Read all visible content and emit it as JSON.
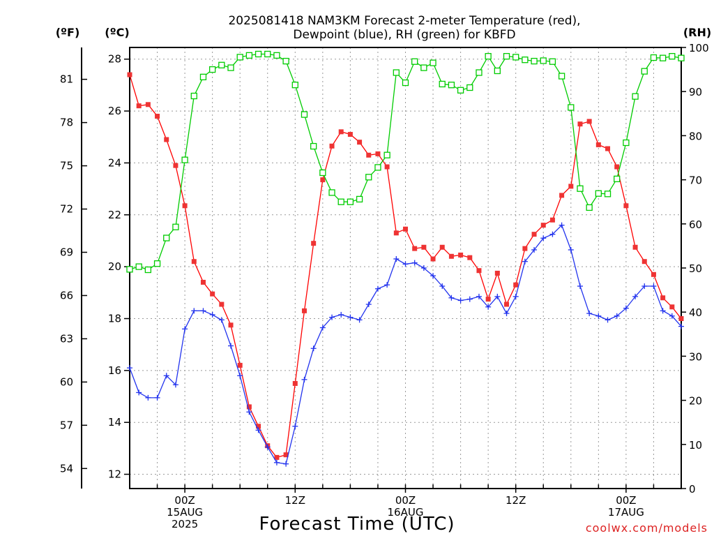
{
  "title_line1": "2025081418 NAM3KM Forecast 2-meter Temperature (red),",
  "title_line2": "Dewpoint (blue), RH (green) for KBFD",
  "units": {
    "fahrenheit": "(ºF)",
    "celsius": "(ºC)",
    "rh": "(RH)"
  },
  "xlabel": "Forecast Time (UTC)",
  "credit": "coolwx.com/models",
  "colors": {
    "temperature": "#ff0000",
    "temperature_marker": "#ee3333",
    "dewpoint": "#2233ee",
    "rh": "#00cc00",
    "grid": "#999999",
    "credit": "#dd2222"
  },
  "chart_data": {
    "type": "line",
    "x_unit": "forecast hour from 2025-08-14 18Z",
    "x_range": [
      0,
      60
    ],
    "x_ticks": [
      {
        "hour": 6,
        "lines": [
          "00Z",
          "15AUG",
          "2025"
        ]
      },
      {
        "hour": 18,
        "lines": [
          "12Z"
        ]
      },
      {
        "hour": 30,
        "lines": [
          "00Z",
          "16AUG"
        ]
      },
      {
        "hour": 42,
        "lines": [
          "12Z"
        ]
      },
      {
        "hour": 54,
        "lines": [
          "00Z",
          "17AUG"
        ]
      }
    ],
    "y_left_celsius": {
      "range": [
        11.45,
        28.45
      ],
      "ticks": [
        12,
        14,
        16,
        18,
        20,
        22,
        24,
        26,
        28
      ]
    },
    "y_left_fahrenheit": {
      "ticks": [
        54,
        57,
        60,
        63,
        66,
        69,
        72,
        75,
        78,
        81
      ]
    },
    "y_right_rh": {
      "range": [
        0,
        100
      ],
      "ticks": [
        0,
        10,
        20,
        30,
        40,
        50,
        60,
        70,
        80,
        90,
        100
      ]
    },
    "grid": true,
    "series": [
      {
        "name": "Temperature (red)",
        "axis": "celsius",
        "marker": "filled-square",
        "values": [
          27.4,
          26.2,
          26.25,
          25.8,
          24.9,
          23.9,
          22.35,
          20.2,
          19.4,
          18.95,
          18.55,
          17.75,
          16.2,
          14.6,
          13.85,
          13.1,
          12.65,
          12.75,
          15.5,
          18.3,
          20.9,
          23.35,
          24.65,
          25.2,
          25.1,
          24.8,
          24.3,
          24.35,
          23.85,
          21.3,
          21.45,
          20.7,
          20.75,
          20.3,
          20.75,
          20.4,
          20.45,
          20.35,
          19.85,
          18.75,
          19.75,
          18.55,
          19.3,
          20.7,
          21.25,
          21.6,
          21.8,
          22.75,
          23.1,
          25.5,
          25.6,
          24.7,
          24.55,
          23.85,
          22.35,
          20.75,
          20.2,
          19.7,
          18.8,
          18.45,
          18.0
        ]
      },
      {
        "name": "Dewpoint (blue)",
        "axis": "celsius",
        "marker": "plus",
        "values": [
          16.1,
          15.15,
          14.95,
          14.95,
          15.8,
          15.45,
          17.6,
          18.3,
          18.3,
          18.15,
          17.95,
          16.95,
          15.8,
          14.4,
          13.7,
          13.05,
          12.45,
          12.4,
          13.85,
          15.65,
          16.85,
          17.65,
          18.05,
          18.15,
          18.05,
          17.95,
          18.55,
          19.15,
          19.3,
          20.3,
          20.1,
          20.15,
          19.95,
          19.65,
          19.25,
          18.8,
          18.7,
          18.75,
          18.85,
          18.45,
          18.85,
          18.2,
          18.85,
          20.2,
          20.65,
          21.1,
          21.25,
          21.6,
          20.65,
          19.25,
          18.2,
          18.1,
          17.95,
          18.1,
          18.4,
          18.85,
          19.25,
          19.25,
          18.3,
          18.1,
          17.7
        ]
      },
      {
        "name": "RH (green)",
        "axis": "rh",
        "marker": "open-square",
        "values": [
          49.7,
          50.3,
          49.6,
          51.0,
          56.8,
          59.3,
          74.5,
          89.0,
          93.3,
          95.0,
          96.0,
          95.4,
          97.8,
          98.2,
          98.5,
          98.5,
          98.2,
          96.9,
          91.5,
          84.8,
          77.6,
          71.6,
          67.1,
          65.0,
          65.0,
          65.6,
          70.6,
          72.8,
          75.6,
          94.3,
          92.0,
          96.8,
          95.4,
          96.5,
          91.7,
          91.5,
          90.3,
          90.9,
          94.3,
          98.0,
          94.7,
          98.0,
          97.8,
          97.2,
          96.9,
          97.0,
          96.8,
          93.5,
          86.4,
          68.0,
          63.7,
          66.9,
          66.8,
          70.2,
          78.4,
          88.9,
          94.6,
          97.7,
          97.6,
          98.0,
          97.6
        ]
      }
    ]
  }
}
